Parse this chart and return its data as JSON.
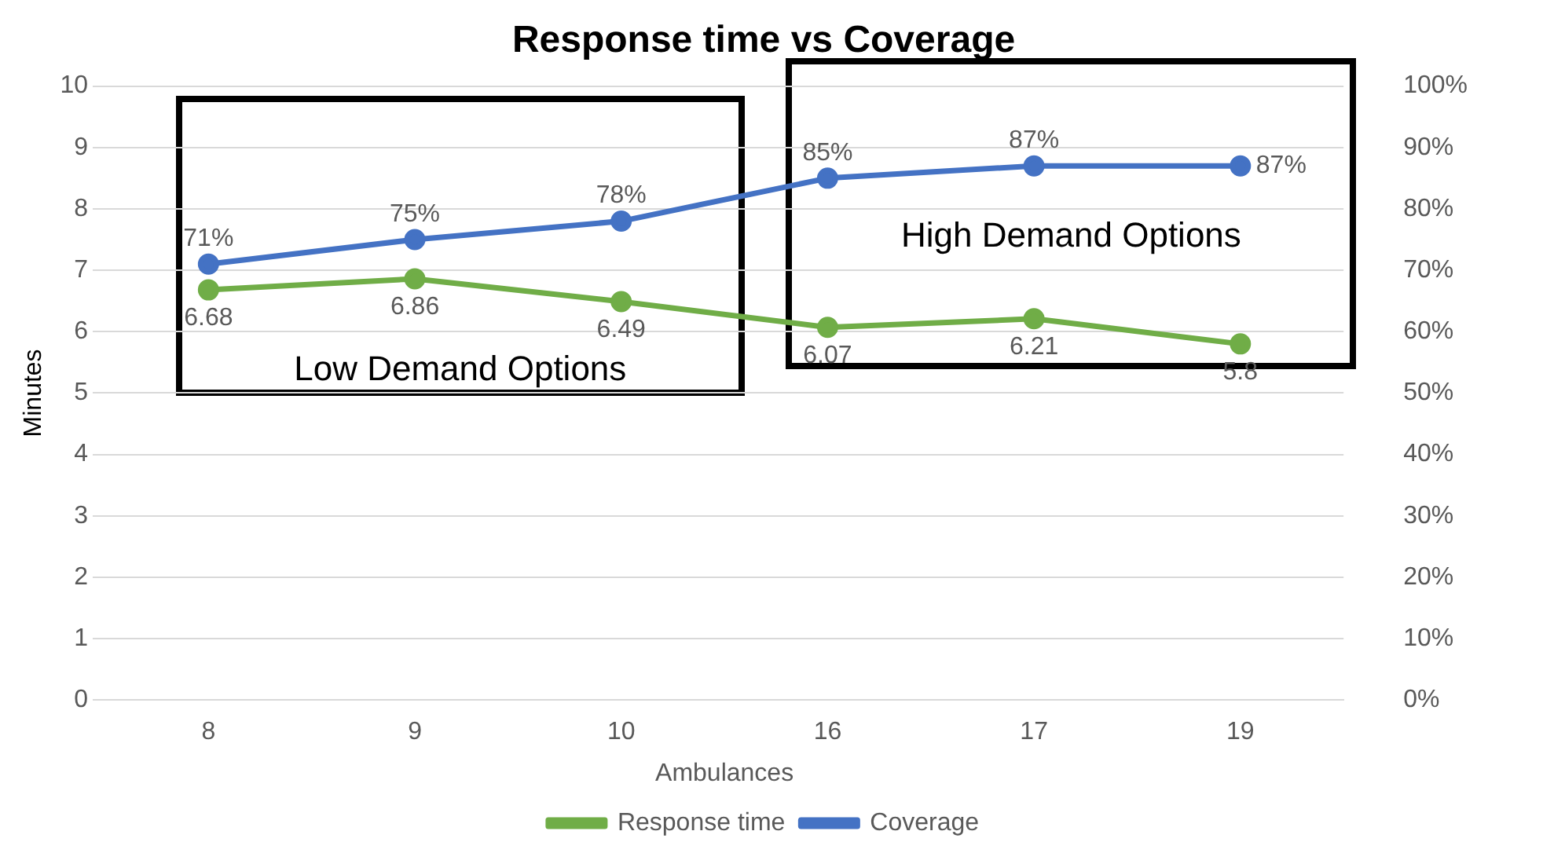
{
  "chart_data": {
    "type": "line",
    "title": "Response time vs Coverage",
    "xlabel": "Ambulances",
    "ylabel": "Minutes",
    "categories": [
      "8",
      "9",
      "10",
      "16",
      "17",
      "19"
    ],
    "series": [
      {
        "name": "Response time",
        "color": "#70ad47",
        "values": [
          6.68,
          6.86,
          6.49,
          6.07,
          6.21,
          5.8
        ],
        "value_labels": [
          "6.68",
          "6.86",
          "6.49",
          "6.07",
          "6.21",
          "5.8"
        ]
      },
      {
        "name": "Coverage",
        "color": "#4472c4",
        "axis": "y2",
        "values": [
          71,
          75,
          78,
          85,
          87,
          87
        ],
        "value_labels": [
          "71%",
          "75%",
          "78%",
          "85%",
          "87%",
          "87%"
        ]
      }
    ],
    "ylim": [
      0,
      10
    ],
    "yticks": [
      0,
      1,
      2,
      3,
      4,
      5,
      6,
      7,
      8,
      9,
      10
    ],
    "y2lim": [
      0,
      100
    ],
    "y2ticks": [
      {
        "value": 0,
        "label": "0%"
      },
      {
        "value": 10,
        "label": "10%"
      },
      {
        "value": 20,
        "label": "20%"
      },
      {
        "value": 30,
        "label": "30%"
      },
      {
        "value": 40,
        "label": "40%"
      },
      {
        "value": 50,
        "label": "50%"
      },
      {
        "value": 60,
        "label": "60%"
      },
      {
        "value": 70,
        "label": "70%"
      },
      {
        "value": 80,
        "label": "80%"
      },
      {
        "value": 90,
        "label": "90%"
      },
      {
        "value": 100,
        "label": "100%"
      }
    ],
    "annotations": [
      "Low Demand Options",
      "High Demand Options"
    ],
    "grid": "y",
    "legend": "bottom",
    "marker": "circle",
    "line_style": "solid"
  }
}
